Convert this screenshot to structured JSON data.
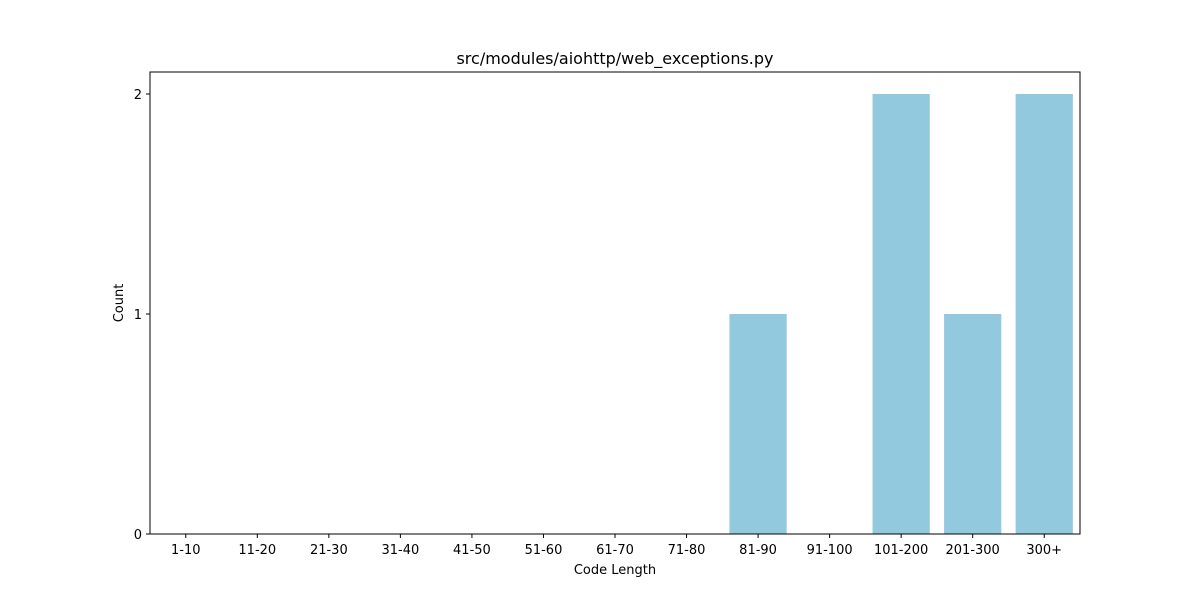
{
  "chart_data": {
    "type": "bar",
    "title": "src/modules/aiohttp/web_exceptions.py",
    "xlabel": "Code Length",
    "ylabel": "Count",
    "categories": [
      "1-10",
      "11-20",
      "21-30",
      "31-40",
      "41-50",
      "51-60",
      "61-70",
      "71-80",
      "81-90",
      "91-100",
      "101-200",
      "201-300",
      "300+"
    ],
    "values": [
      0,
      0,
      0,
      0,
      0,
      0,
      0,
      0,
      1,
      0,
      2,
      1,
      2
    ],
    "ylim": [
      0,
      2.1
    ],
    "yticks": [
      0,
      1,
      2
    ],
    "bar_color": "#92c9de",
    "grid": false
  }
}
